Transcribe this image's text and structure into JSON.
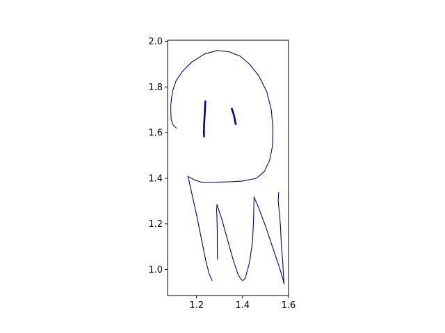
{
  "chart_data": {
    "type": "line",
    "title": "",
    "xlabel": "",
    "ylabel": "",
    "xlim": [
      1.074,
      1.6
    ],
    "ylim": [
      0.886,
      2.005
    ],
    "xticks": [
      1.2,
      1.4,
      1.6
    ],
    "xtick_labels": [
      "1.2",
      "1.4",
      "1.6"
    ],
    "yticks": [
      1.0,
      1.2,
      1.4,
      1.6,
      1.8,
      2.0
    ],
    "ytick_labels": [
      "1.0",
      "1.2",
      "1.4",
      "1.6",
      "1.8",
      "2.0"
    ],
    "grid": false,
    "line_color": "#00008b",
    "aspect": "equal",
    "series": [
      {
        "role": "head-outline",
        "width": "thin",
        "x": [
          1.112,
          1.097,
          1.089,
          1.088,
          1.095,
          1.112,
          1.14,
          1.18,
          1.235,
          1.29,
          1.34,
          1.39,
          1.43,
          1.47,
          1.505,
          1.525,
          1.532,
          1.53,
          1.518,
          1.495,
          1.46,
          1.4,
          1.35,
          1.29,
          1.23,
          1.19,
          1.163
        ],
        "y": [
          1.62,
          1.635,
          1.66,
          1.72,
          1.78,
          1.83,
          1.87,
          1.91,
          1.945,
          1.96,
          1.955,
          1.935,
          1.9,
          1.85,
          1.78,
          1.7,
          1.62,
          1.54,
          1.48,
          1.43,
          1.4,
          1.388,
          1.385,
          1.383,
          1.38,
          1.393,
          1.408
        ]
      },
      {
        "role": "tentacle-1",
        "width": "thin",
        "x": [
          1.163,
          1.18,
          1.2,
          1.22,
          1.24,
          1.255,
          1.268
        ],
        "y": [
          1.408,
          1.33,
          1.24,
          1.14,
          1.04,
          0.98,
          0.952
        ]
      },
      {
        "role": "tentacle-2",
        "width": "thin",
        "x": [
          1.291,
          1.29,
          1.29,
          1.289,
          1.287,
          1.289
        ],
        "y": [
          1.045,
          1.1,
          1.16,
          1.22,
          1.265,
          1.285
        ]
      },
      {
        "role": "tentacle-3",
        "width": "thin",
        "x": [
          1.289,
          1.31,
          1.335,
          1.36,
          1.38,
          1.393,
          1.401,
          1.412,
          1.43,
          1.443,
          1.448,
          1.45
        ],
        "y": [
          1.285,
          1.22,
          1.13,
          1.04,
          0.98,
          0.958,
          0.951,
          0.962,
          1.03,
          1.12,
          1.22,
          1.318
        ]
      },
      {
        "role": "tentacle-4",
        "width": "thin",
        "x": [
          1.45,
          1.47,
          1.5,
          1.53,
          1.56,
          1.575,
          1.58
        ],
        "y": [
          1.318,
          1.27,
          1.19,
          1.1,
          1.01,
          0.96,
          0.938
        ]
      },
      {
        "role": "tentacle-5",
        "width": "thin",
        "x": [
          1.58,
          1.575,
          1.568,
          1.565,
          1.56,
          1.555,
          1.557
        ],
        "y": [
          0.938,
          1.03,
          1.12,
          1.19,
          1.25,
          1.3,
          1.338
        ]
      },
      {
        "role": "left-eye",
        "width": "thick",
        "x": [
          1.233,
          1.232,
          1.233,
          1.236,
          1.238
        ],
        "y": [
          1.583,
          1.6,
          1.64,
          1.69,
          1.737
        ]
      },
      {
        "role": "right-eye",
        "width": "thick",
        "x": [
          1.353,
          1.36,
          1.365,
          1.368,
          1.37
        ],
        "y": [
          1.705,
          1.685,
          1.665,
          1.648,
          1.638
        ]
      }
    ]
  }
}
